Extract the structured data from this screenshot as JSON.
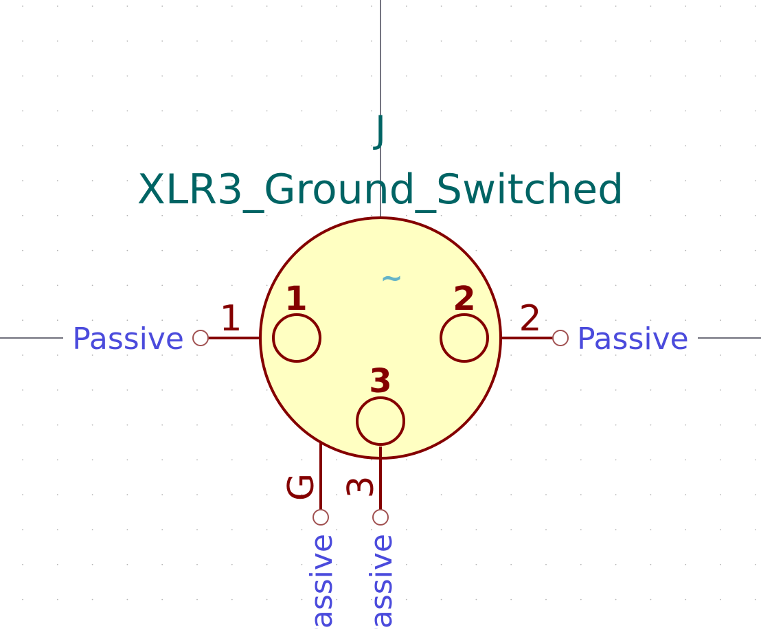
{
  "symbol": {
    "reference": "J",
    "value": "XLR3_Ground_Switched",
    "alternate_marker": "~"
  },
  "pins": [
    {
      "number": "1",
      "name": "1",
      "electrical_type": "Passive"
    },
    {
      "number": "2",
      "name": "2",
      "electrical_type": "Passive"
    },
    {
      "number": "3",
      "name": "3",
      "electrical_type": "Passive"
    },
    {
      "number": "G",
      "electrical_type": "Passive"
    }
  ],
  "colors": {
    "background": "#ffffff",
    "grid_dot": "#b4b4b4",
    "crosshair": "#1a1a2e",
    "body_fill": "#ffffc2",
    "body_stroke": "#840000",
    "pin": "#840000",
    "field_text": "#006464",
    "pin_type_text": "#4b4bdc",
    "alt_marker": "#64b4c8"
  }
}
